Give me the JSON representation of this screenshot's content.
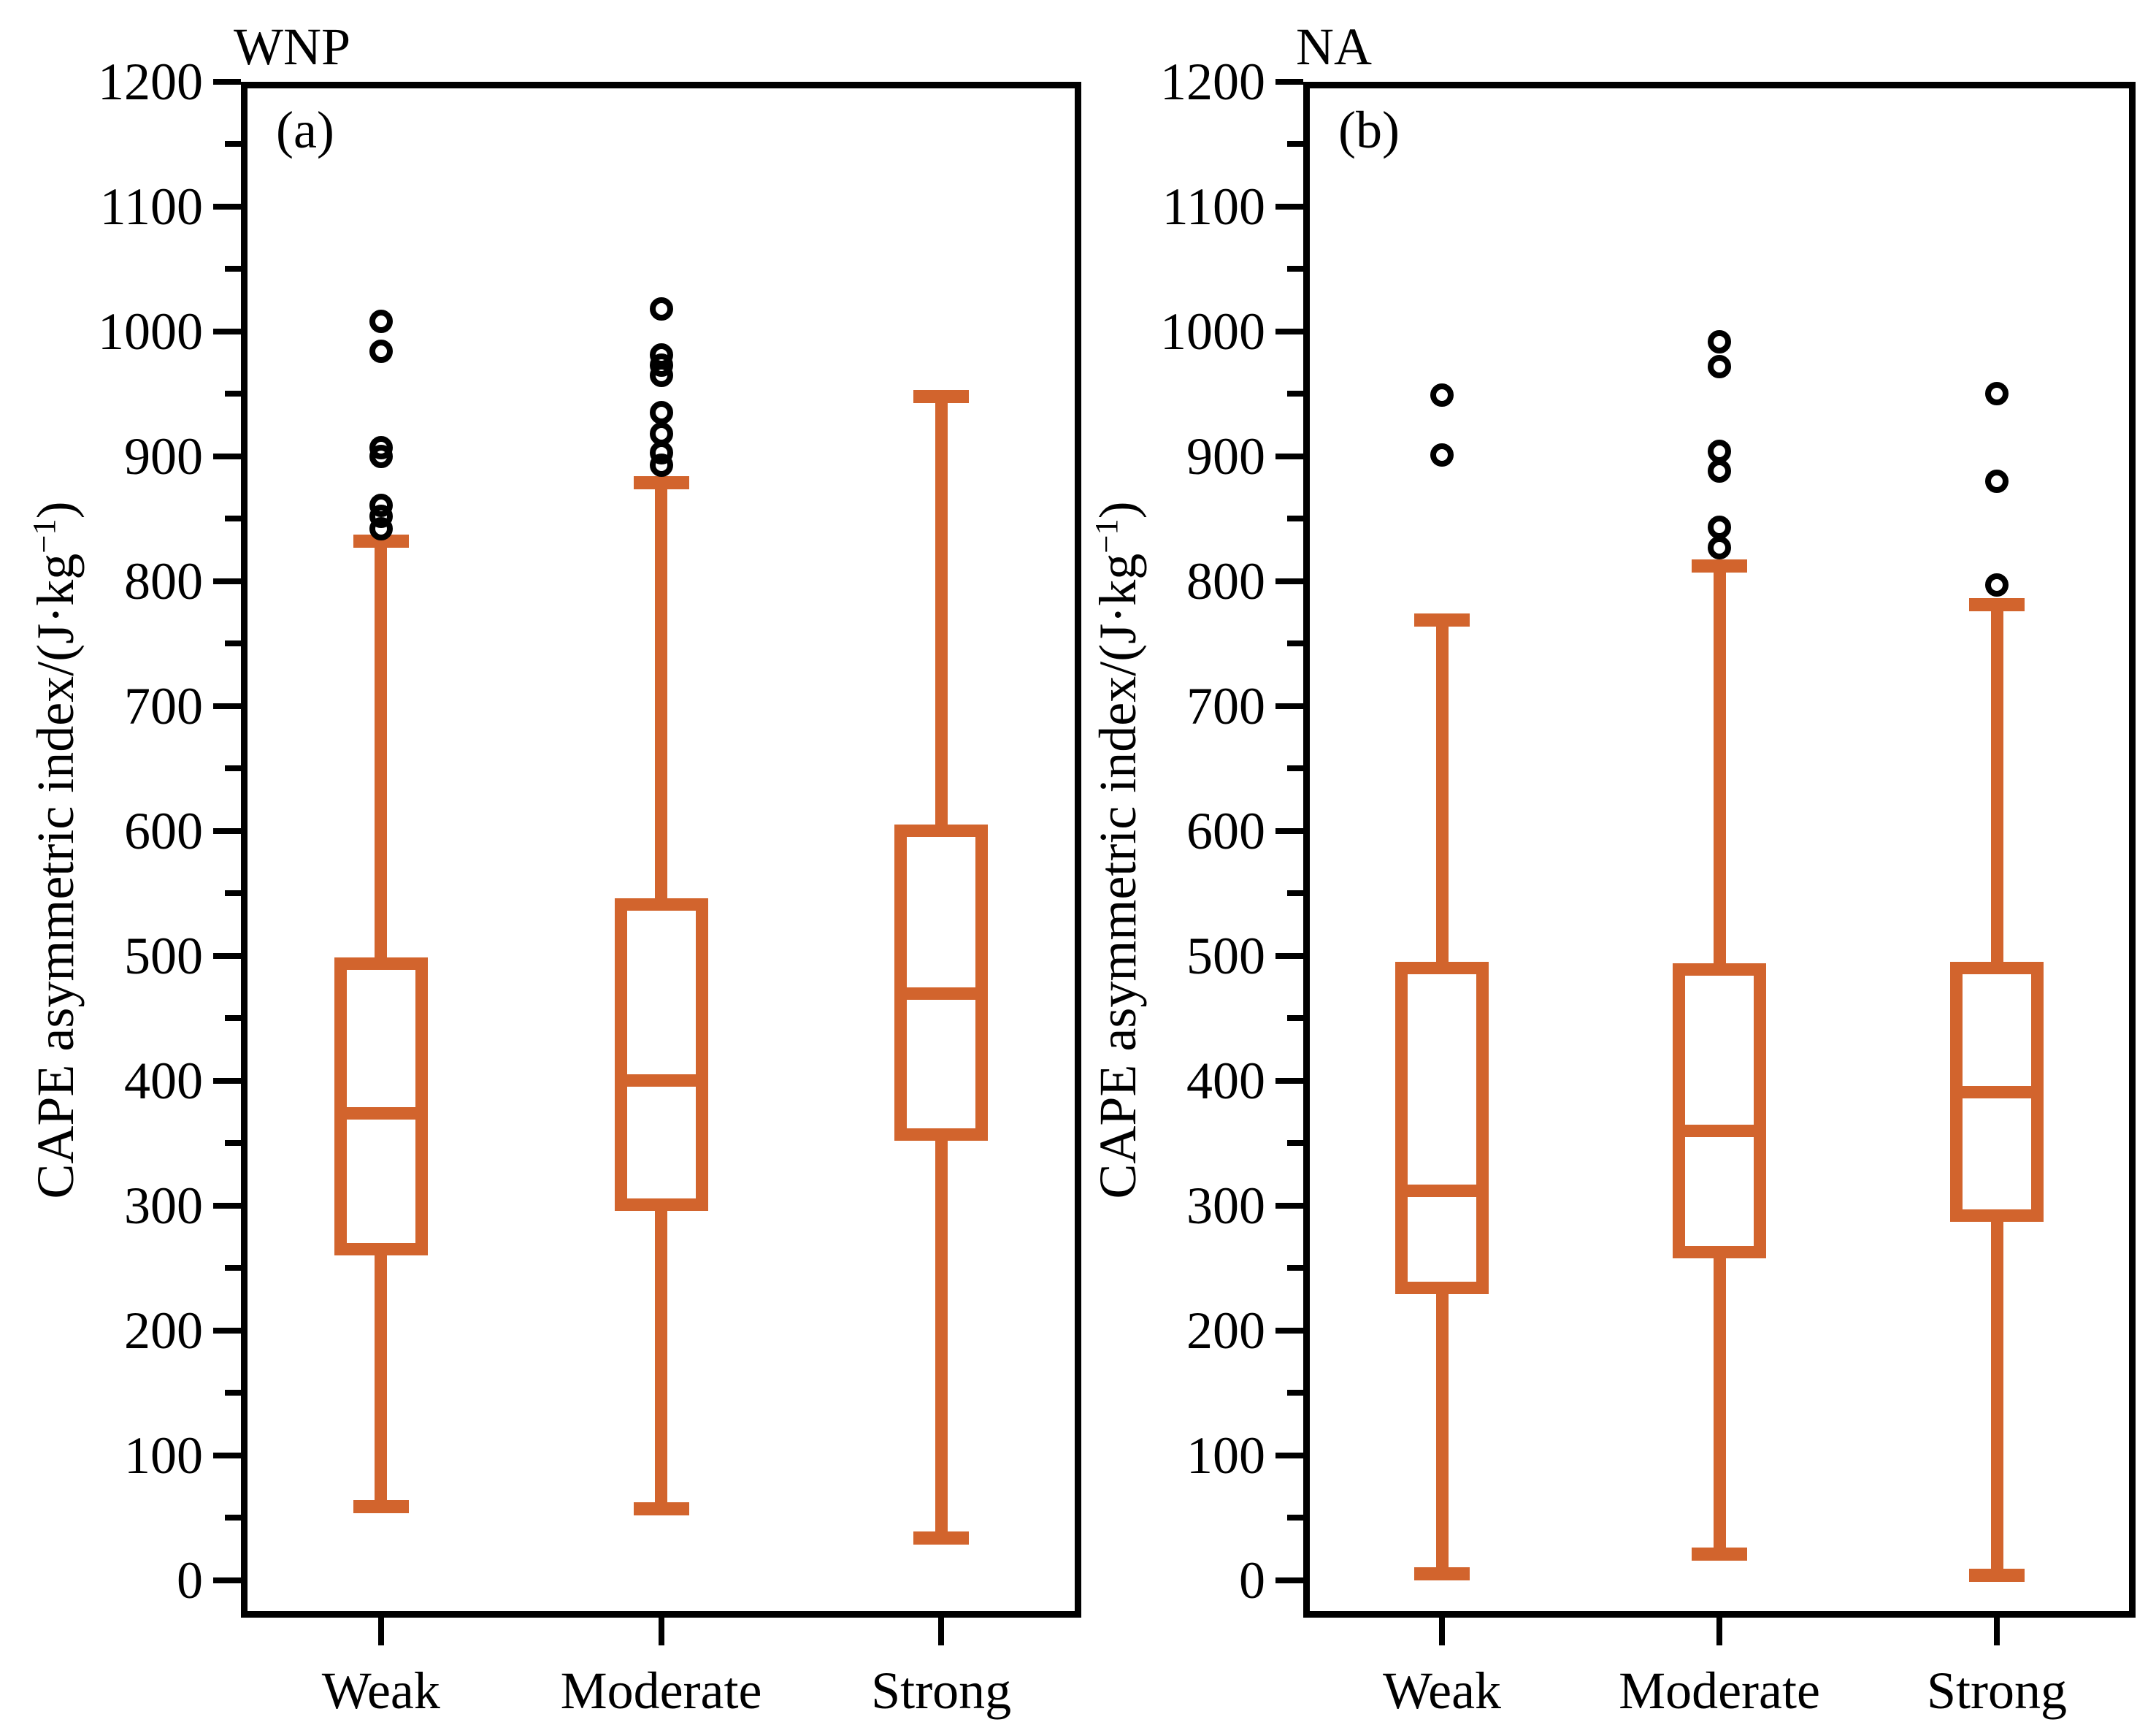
{
  "figure": {
    "background": "#ffffff",
    "box_color": "#D2642D",
    "axis_color": "#000000",
    "outlier_color": "#000000"
  },
  "y_axis": {
    "label_prefix": "CAPE asymmetric index/(J·kg",
    "label_sup": "−1",
    "label_suffix": ")",
    "axis_min": -30,
    "axis_max": 1200,
    "tick_min": 0,
    "tick_max": 1200,
    "major_step": 100,
    "minor_step": 50,
    "major_tick_labels": [
      "0",
      "100",
      "200",
      "300",
      "400",
      "500",
      "600",
      "700",
      "800",
      "900",
      "1000",
      "1100",
      "1200"
    ]
  },
  "categories": [
    "Weak",
    "Moderate",
    "Strong"
  ],
  "chart_data": [
    {
      "type": "box",
      "panel": "a",
      "title": "WNP",
      "panel_label": "(a)",
      "ylabel": "CAPE asymmetric index/(J·kg⁻¹)",
      "xlabel": "",
      "ylim": [
        -30,
        1200
      ],
      "grid": false,
      "categories": [
        "Weak",
        "Moderate",
        "Strong"
      ],
      "series": [
        {
          "name": "Weak",
          "whislo": 59,
          "q1": 265,
          "med": 374,
          "q3": 494,
          "whishi": 832,
          "outliers": [
            842,
            852,
            861,
            900,
            907,
            984,
            1008
          ]
        },
        {
          "name": "Moderate",
          "whislo": 57,
          "q1": 301,
          "med": 400,
          "q3": 541,
          "whishi": 879,
          "outliers": [
            893,
            903,
            918,
            935,
            965,
            973,
            981,
            1018
          ]
        },
        {
          "name": "Strong",
          "whislo": 34,
          "q1": 357,
          "med": 470,
          "q3": 600,
          "whishi": 948,
          "outliers": []
        }
      ]
    },
    {
      "type": "box",
      "panel": "b",
      "title": "NA",
      "panel_label": "(b)",
      "ylabel": "CAPE asymmetric index/(J·kg⁻¹)",
      "xlabel": "",
      "ylim": [
        -30,
        1200
      ],
      "grid": false,
      "categories": [
        "Weak",
        "Moderate",
        "Strong"
      ],
      "series": [
        {
          "name": "Weak",
          "whislo": 5,
          "q1": 234,
          "med": 312,
          "q3": 490,
          "whishi": 769,
          "outliers": [
            901,
            949
          ]
        },
        {
          "name": "Moderate",
          "whislo": 21,
          "q1": 263,
          "med": 360,
          "q3": 489,
          "whishi": 812,
          "outliers": [
            827,
            843,
            888,
            904,
            972,
            992
          ]
        },
        {
          "name": "Strong",
          "whislo": 4,
          "q1": 292,
          "med": 391,
          "q3": 490,
          "whishi": 781,
          "outliers": [
            797,
            880,
            950
          ]
        }
      ]
    }
  ]
}
